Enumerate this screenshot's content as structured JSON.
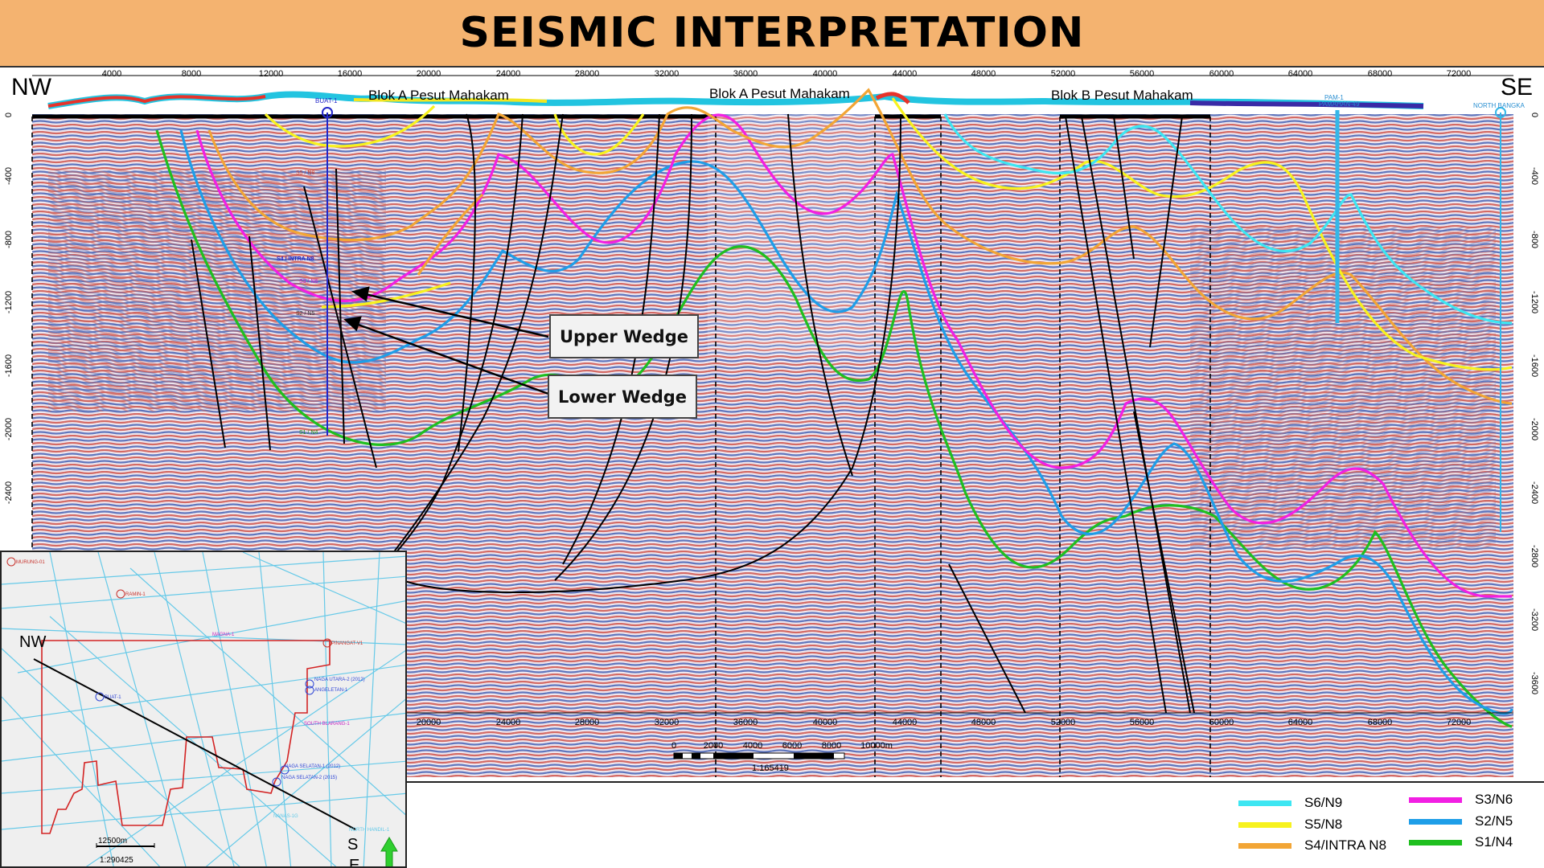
{
  "title": "SEISMIC INTERPRETATION",
  "section": {
    "dir_left": "NW",
    "dir_right": "SE",
    "top_axis": [
      "4000",
      "8000",
      "12000",
      "16000",
      "20000",
      "24000",
      "28000",
      "32000",
      "36000",
      "40000",
      "44000",
      "48000",
      "52000",
      "56000",
      "60000",
      "64000",
      "68000",
      "72000"
    ],
    "bottom_axis": [
      "20000",
      "24000",
      "28000",
      "32000",
      "36000",
      "40000",
      "44000",
      "48000",
      "52000",
      "56000",
      "60000",
      "64000",
      "68000",
      "72000"
    ],
    "depth_axis": [
      "0",
      "-400",
      "-800",
      "-1200",
      "-1600",
      "-2000",
      "-2400",
      "-2800",
      "-3200",
      "-3600"
    ],
    "blocks": [
      "Blok A Pesut Mahakam",
      "Blok A Pesut Mahakam",
      "Blok B Pesut Mahakam"
    ],
    "wells": [
      "BUAT-1",
      "PAM-1",
      "PAMAHAN-49",
      "NORTH BANGKA"
    ],
    "well_labels": [
      "S5 / N8",
      "S4 / INTRA N8",
      "S3 / N6",
      "S2 / N5",
      "S1 / N4"
    ],
    "callouts": {
      "upper": "Upper Wedge",
      "lower": "Lower Wedge"
    },
    "scalebar": {
      "ticks": [
        "0",
        "2000",
        "4000",
        "6000",
        "8000",
        "10000m"
      ],
      "scale": "1:165419"
    }
  },
  "legend": [
    {
      "name": "S6/N9",
      "color": "#3de6f2"
    },
    {
      "name": "S5/N8",
      "color": "#f7f21e"
    },
    {
      "name": "S4/INTRA N8",
      "color": "#f2a535"
    },
    {
      "name": "S3/N6",
      "color": "#f21fe3"
    },
    {
      "name": "S2/N5",
      "color": "#1e9ee8"
    },
    {
      "name": "S1/N4",
      "color": "#1fbf1f"
    }
  ],
  "inset": {
    "dir_nw": "NW",
    "dir_s": "S",
    "dir_e": "E",
    "scale_bar": "12500m",
    "scale": "1:290425",
    "wells": [
      "MURUNG-01",
      "RAMIN-1",
      "MAGNA-1",
      "BUAT-1",
      "PINANGAT-V1",
      "NAGA UTARA-2 (2012)",
      "ANGELETAN-1",
      "SOUTH BLARANG-1",
      "NAGA SELATAN-1 (2012)",
      "NAGA SELATAN-2 (2015)",
      "NANAS-1G",
      "NORTH HANDIL-1"
    ]
  }
}
